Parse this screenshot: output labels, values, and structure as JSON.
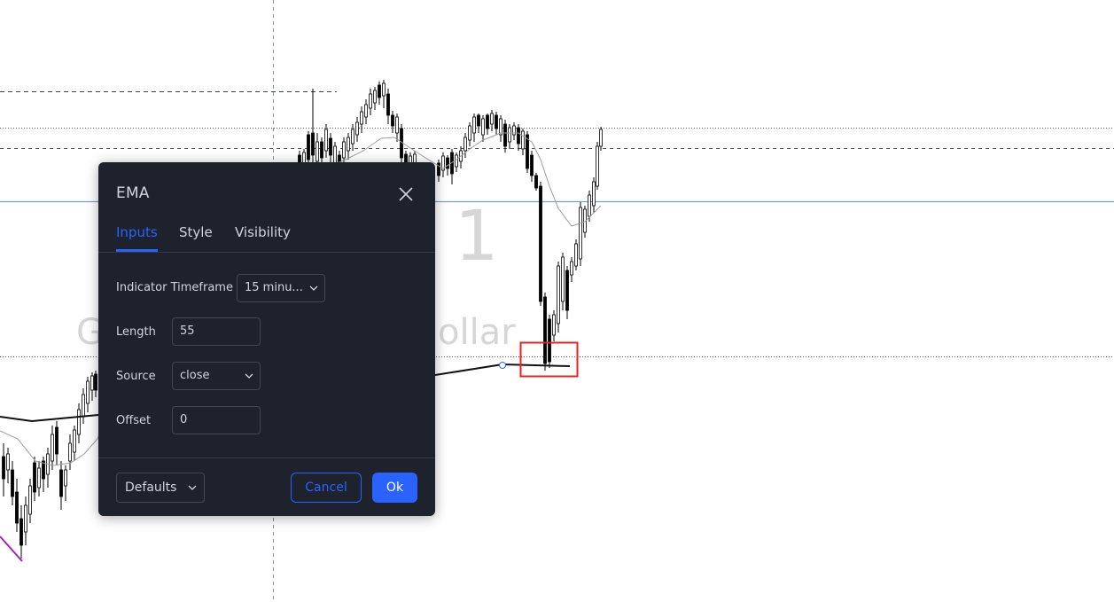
{
  "watermark": {
    "interval": "1",
    "symbol_part1": "G",
    "symbol_part2": "ollar"
  },
  "dialog": {
    "title": "EMA",
    "tabs": [
      {
        "label": "Inputs",
        "active": true
      },
      {
        "label": "Style",
        "active": false
      },
      {
        "label": "Visibility",
        "active": false
      }
    ],
    "inputs": {
      "timeframe": {
        "label": "Indicator Timeframe",
        "value": "15 minu..."
      },
      "length": {
        "label": "Length",
        "value": "55"
      },
      "source": {
        "label": "Source",
        "value": "close"
      },
      "offset": {
        "label": "Offset",
        "value": "0"
      }
    },
    "footer": {
      "defaults_label": "Defaults",
      "cancel_label": "Cancel",
      "ok_label": "Ok"
    }
  },
  "colors": {
    "dialog_bg": "#1e222d",
    "accent": "#2962ff",
    "text": "#d1d4dc",
    "border": "#434651",
    "candle": "#000000",
    "ema_line": "#9e9e9e",
    "price_line": "#7b9fd6",
    "highlight_box": "#e52420",
    "trend_line_purple": "#9c27b0"
  }
}
